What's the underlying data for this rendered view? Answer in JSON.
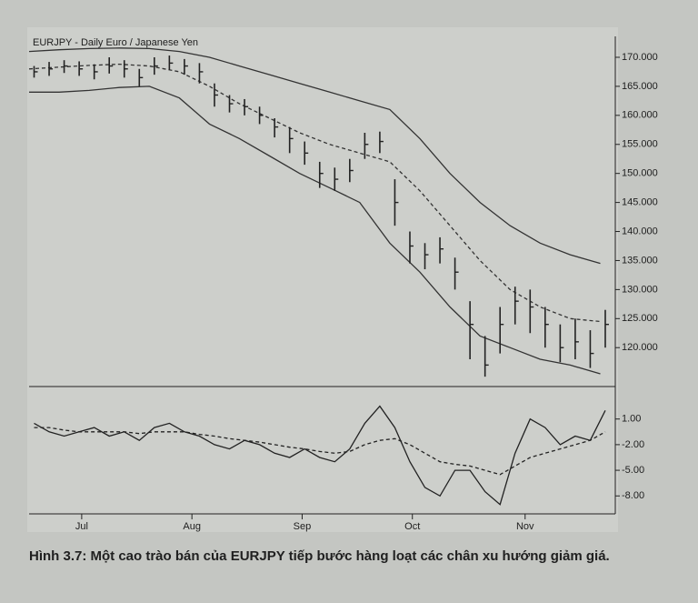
{
  "caption": "Hình 3.7: Một cao trào bán của EURJPY tiếp bước hàng loạt các chân xu hướng giảm giá.",
  "chart_data": [
    {
      "type": "ohlc",
      "title": "EURJPY - Daily  Euro / Japanese Yen",
      "color": "#222222",
      "xlim": [
        0,
        117
      ],
      "ylim": [
        113.3,
        173.6
      ],
      "yticks": [
        {
          "value": 120,
          "label": "120.000"
        },
        {
          "value": 125,
          "label": "125.000"
        },
        {
          "value": 130,
          "label": "130.000"
        },
        {
          "value": 135,
          "label": "135.000"
        },
        {
          "value": 140,
          "label": "140.000"
        },
        {
          "value": 145,
          "label": "145.000"
        },
        {
          "value": 150,
          "label": "150.000"
        },
        {
          "value": 155,
          "label": "155.000"
        },
        {
          "value": 160,
          "label": "160.000"
        },
        {
          "value": 165,
          "label": "165.000"
        },
        {
          "value": 170,
          "label": "170.000"
        }
      ],
      "x": [
        1,
        4,
        7,
        10,
        13,
        16,
        19,
        22,
        25,
        28,
        31,
        34,
        37,
        40,
        43,
        46,
        49,
        52,
        55,
        58,
        61,
        64,
        67,
        70,
        73,
        76,
        79,
        82,
        85,
        88,
        91,
        94,
        97,
        100,
        103,
        106,
        109,
        112,
        115
      ],
      "high": [
        168.5,
        169.2,
        169.5,
        169.3,
        168.8,
        170,
        169.5,
        168,
        170,
        170.3,
        169.7,
        169,
        165.5,
        163.5,
        162.8,
        161.5,
        159.5,
        158,
        155.5,
        152,
        151,
        152.5,
        157,
        157.2,
        149,
        140,
        138,
        139,
        135.5,
        128,
        122,
        127,
        130.5,
        130,
        127,
        124,
        125,
        123,
        126.5
      ],
      "low": [
        166.5,
        166.8,
        167.3,
        166.8,
        166.2,
        167.2,
        166.5,
        165,
        167,
        167.8,
        167,
        165.5,
        161.5,
        160.5,
        160,
        158.5,
        156.2,
        153.5,
        151.5,
        147.5,
        147,
        148.5,
        152.5,
        153.5,
        141,
        134.5,
        133.5,
        134.5,
        130,
        118,
        115,
        119,
        124,
        122.5,
        120,
        117.5,
        118,
        116.5,
        120
      ],
      "close": [
        167.5,
        168,
        168.5,
        168,
        167.5,
        168.5,
        168,
        166.5,
        168.5,
        169,
        168.5,
        167.5,
        163.5,
        162,
        161.5,
        160,
        158,
        156,
        153.5,
        150,
        149,
        150.5,
        155,
        155.5,
        145,
        137.5,
        136,
        137,
        133,
        124,
        117,
        124,
        128,
        127,
        124,
        120,
        121,
        119,
        124
      ],
      "overlays": [
        {
          "color": "#333333",
          "dash": false,
          "x": [
            0,
            6,
            12,
            18,
            24,
            30,
            36,
            42,
            48,
            54,
            60,
            66,
            72,
            78,
            84,
            90,
            96,
            102,
            108,
            114
          ],
          "values": [
            171,
            171.3,
            171.5,
            171.6,
            171.5,
            171,
            170,
            168.5,
            167,
            165.5,
            164,
            162.5,
            161,
            156,
            150,
            145,
            141,
            138,
            136,
            134.5
          ]
        },
        {
          "color": "#333333",
          "dash": true,
          "x": [
            0,
            6,
            12,
            18,
            24,
            30,
            36,
            42,
            48,
            54,
            60,
            66,
            72,
            78,
            84,
            90,
            96,
            102,
            108,
            114
          ],
          "values": [
            168,
            168.3,
            168.6,
            168.8,
            168.5,
            167.5,
            165,
            162,
            159.5,
            157,
            155,
            153.5,
            152,
            147,
            141,
            135,
            130,
            127,
            125,
            124.5
          ]
        },
        {
          "color": "#333333",
          "dash": false,
          "x": [
            0,
            6,
            12,
            18,
            24,
            30,
            36,
            42,
            48,
            54,
            60,
            66,
            72,
            78,
            84,
            90,
            96,
            102,
            108,
            114
          ],
          "values": [
            164,
            164,
            164.3,
            164.8,
            165,
            163,
            158.5,
            156,
            153,
            150,
            147.5,
            145,
            138,
            133,
            127,
            122,
            120,
            118,
            117,
            115.5
          ]
        }
      ]
    },
    {
      "type": "line",
      "xlim": [
        0,
        117
      ],
      "ylim": [
        -10.1,
        4.8
      ],
      "yticks": [
        {
          "value": -8,
          "label": "-8.00"
        },
        {
          "value": -5,
          "label": "-5.00"
        },
        {
          "value": -2,
          "label": "-2.00"
        },
        {
          "value": 1,
          "label": "1.00"
        }
      ],
      "xticks": [
        {
          "value": 10.5,
          "label": "Jul"
        },
        {
          "value": 32.5,
          "label": "Aug"
        },
        {
          "value": 54.5,
          "label": "Sep"
        },
        {
          "value": 76.5,
          "label": "Oct"
        },
        {
          "value": 99,
          "label": "Nov"
        }
      ],
      "x": [
        1,
        4,
        7,
        10,
        13,
        16,
        19,
        22,
        25,
        28,
        31,
        34,
        37,
        40,
        43,
        46,
        49,
        52,
        55,
        58,
        61,
        64,
        67,
        70,
        73,
        76,
        79,
        82,
        85,
        88,
        91,
        94,
        97,
        100,
        103,
        106,
        109,
        112,
        115
      ],
      "series": [
        {
          "color": "#222222",
          "dash": false,
          "values": [
            0.5,
            -0.5,
            -1,
            -0.5,
            0,
            -1,
            -0.5,
            -1.5,
            0,
            0.5,
            -0.5,
            -1,
            -2,
            -2.5,
            -1.5,
            -2,
            -3,
            -3.5,
            -2.5,
            -3.5,
            -4,
            -2.5,
            0.5,
            2.5,
            0,
            -4,
            -7,
            -8,
            -5,
            -5,
            -7.5,
            -9,
            -3,
            1,
            0,
            -2,
            -1,
            -1.5,
            2
          ]
        },
        {
          "color": "#222222",
          "dash": true,
          "values": [
            0,
            0,
            -0.3,
            -0.5,
            -0.5,
            -0.5,
            -0.5,
            -0.7,
            -0.5,
            -0.5,
            -0.5,
            -0.8,
            -1,
            -1.3,
            -1.5,
            -1.7,
            -2,
            -2.3,
            -2.5,
            -2.8,
            -3,
            -2.8,
            -2,
            -1.5,
            -1.3,
            -2,
            -3,
            -4,
            -4.3,
            -4.5,
            -5,
            -5.5,
            -4.5,
            -3.5,
            -3,
            -2.5,
            -2,
            -1.5,
            -0.5
          ]
        }
      ]
    }
  ]
}
